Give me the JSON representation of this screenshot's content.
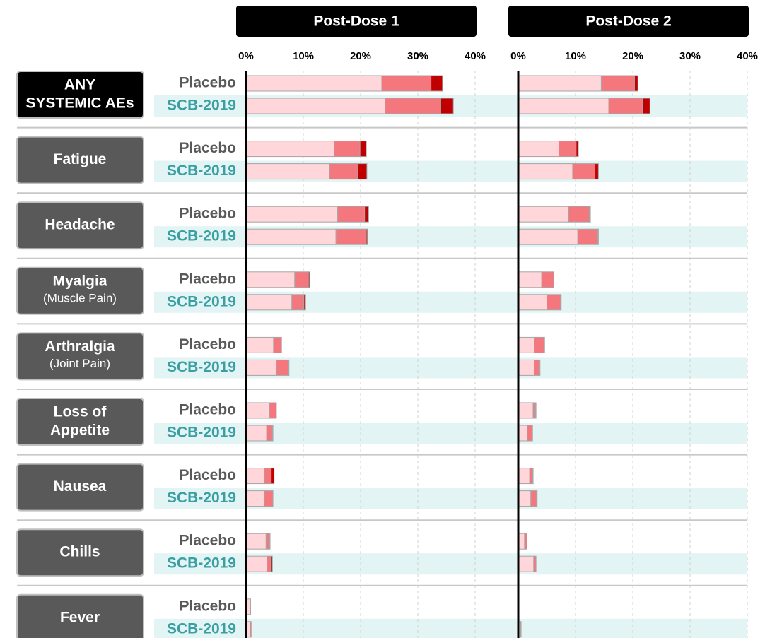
{
  "chart_data": {
    "type": "stacked-bar-horizontal",
    "categories": [
      {
        "lines": [
          "ANY",
          "SYSTEMIC AEs"
        ]
      },
      {
        "lines": [
          "Fatigue"
        ]
      },
      {
        "lines": [
          "Headache"
        ]
      },
      {
        "lines": [
          "Myalgia"
        ],
        "note": "(Muscle Pain)"
      },
      {
        "lines": [
          "Arthralgia"
        ],
        "note": "(Joint Pain)"
      },
      {
        "lines": [
          "Loss of",
          "Appetite"
        ]
      },
      {
        "lines": [
          "Nausea"
        ]
      },
      {
        "lines": [
          "Chills"
        ]
      },
      {
        "lines": [
          "Fever"
        ]
      }
    ],
    "groups": [
      {
        "name": "Placebo",
        "color": "#595959"
      },
      {
        "name": "SCB-2019",
        "color": "#3a9fa3"
      }
    ],
    "xlim": [
      0,
      40
    ],
    "xticks": [
      {
        "value": 0,
        "label": "0%"
      },
      {
        "value": 10,
        "label": "10%"
      },
      {
        "value": 20,
        "label": "20%"
      },
      {
        "value": 30,
        "label": "30%"
      },
      {
        "value": 40,
        "label": "40%"
      }
    ],
    "grid": true,
    "panels": [
      {
        "title": "Post-Dose 1",
        "series": [
          {
            "color": "#ffd6d9",
            "values": [
              [
                23.7,
                24.3
              ],
              [
                15.4,
                14.6
              ],
              [
                16.0,
                15.7
              ],
              [
                8.5,
                8.0
              ],
              [
                4.8,
                5.3
              ],
              [
                4.1,
                3.6
              ],
              [
                3.2,
                3.2
              ],
              [
                3.5,
                3.7
              ],
              [
                0.7,
                0.7
              ]
            ]
          },
          {
            "color": "#f4777d",
            "values": [
              [
                8.6,
                9.7
              ],
              [
                4.5,
                4.9
              ],
              [
                4.7,
                5.3
              ],
              [
                2.4,
                2.1
              ],
              [
                1.4,
                2.1
              ],
              [
                1.2,
                1.0
              ],
              [
                1.2,
                1.5
              ],
              [
                0.6,
                0.6
              ],
              [
                0.1,
                0.2
              ]
            ]
          },
          {
            "color": "#c00000",
            "values": [
              [
                2.0,
                2.2
              ],
              [
                1.1,
                1.6
              ],
              [
                0.7,
                0.2
              ],
              [
                0.2,
                0.3
              ],
              [
                0,
                0.1
              ],
              [
                0,
                0.1
              ],
              [
                0.5,
                0
              ],
              [
                0.1,
                0.3
              ],
              [
                0,
                0
              ]
            ]
          }
        ]
      },
      {
        "title": "Post-Dose 2",
        "series": [
          {
            "color": "#ffd6d9",
            "values": [
              [
                14.5,
                15.8
              ],
              [
                7.1,
                9.5
              ],
              [
                8.8,
                10.4
              ],
              [
                4.1,
                5.0
              ],
              [
                2.8,
                2.8
              ],
              [
                2.6,
                1.6
              ],
              [
                2.0,
                2.2
              ],
              [
                1.1,
                2.7
              ],
              [
                0.1,
                0.4
              ]
            ]
          },
          {
            "color": "#f4777d",
            "values": [
              [
                5.8,
                5.9
              ],
              [
                3.0,
                3.9
              ],
              [
                3.6,
                3.5
              ],
              [
                2.1,
                2.4
              ],
              [
                1.7,
                0.9
              ],
              [
                0.4,
                0.8
              ],
              [
                0.5,
                1.0
              ],
              [
                0.4,
                0.4
              ],
              [
                0,
                0.1
              ]
            ]
          },
          {
            "color": "#c00000",
            "values": [
              [
                0.6,
                1.3
              ],
              [
                0.4,
                0.6
              ],
              [
                0.2,
                0.1
              ],
              [
                0,
                0.1
              ],
              [
                0.1,
                0.1
              ],
              [
                0.1,
                0.1
              ],
              [
                0.1,
                0.1
              ],
              [
                0,
                0
              ],
              [
                0,
                0
              ]
            ]
          }
        ]
      }
    ]
  }
}
